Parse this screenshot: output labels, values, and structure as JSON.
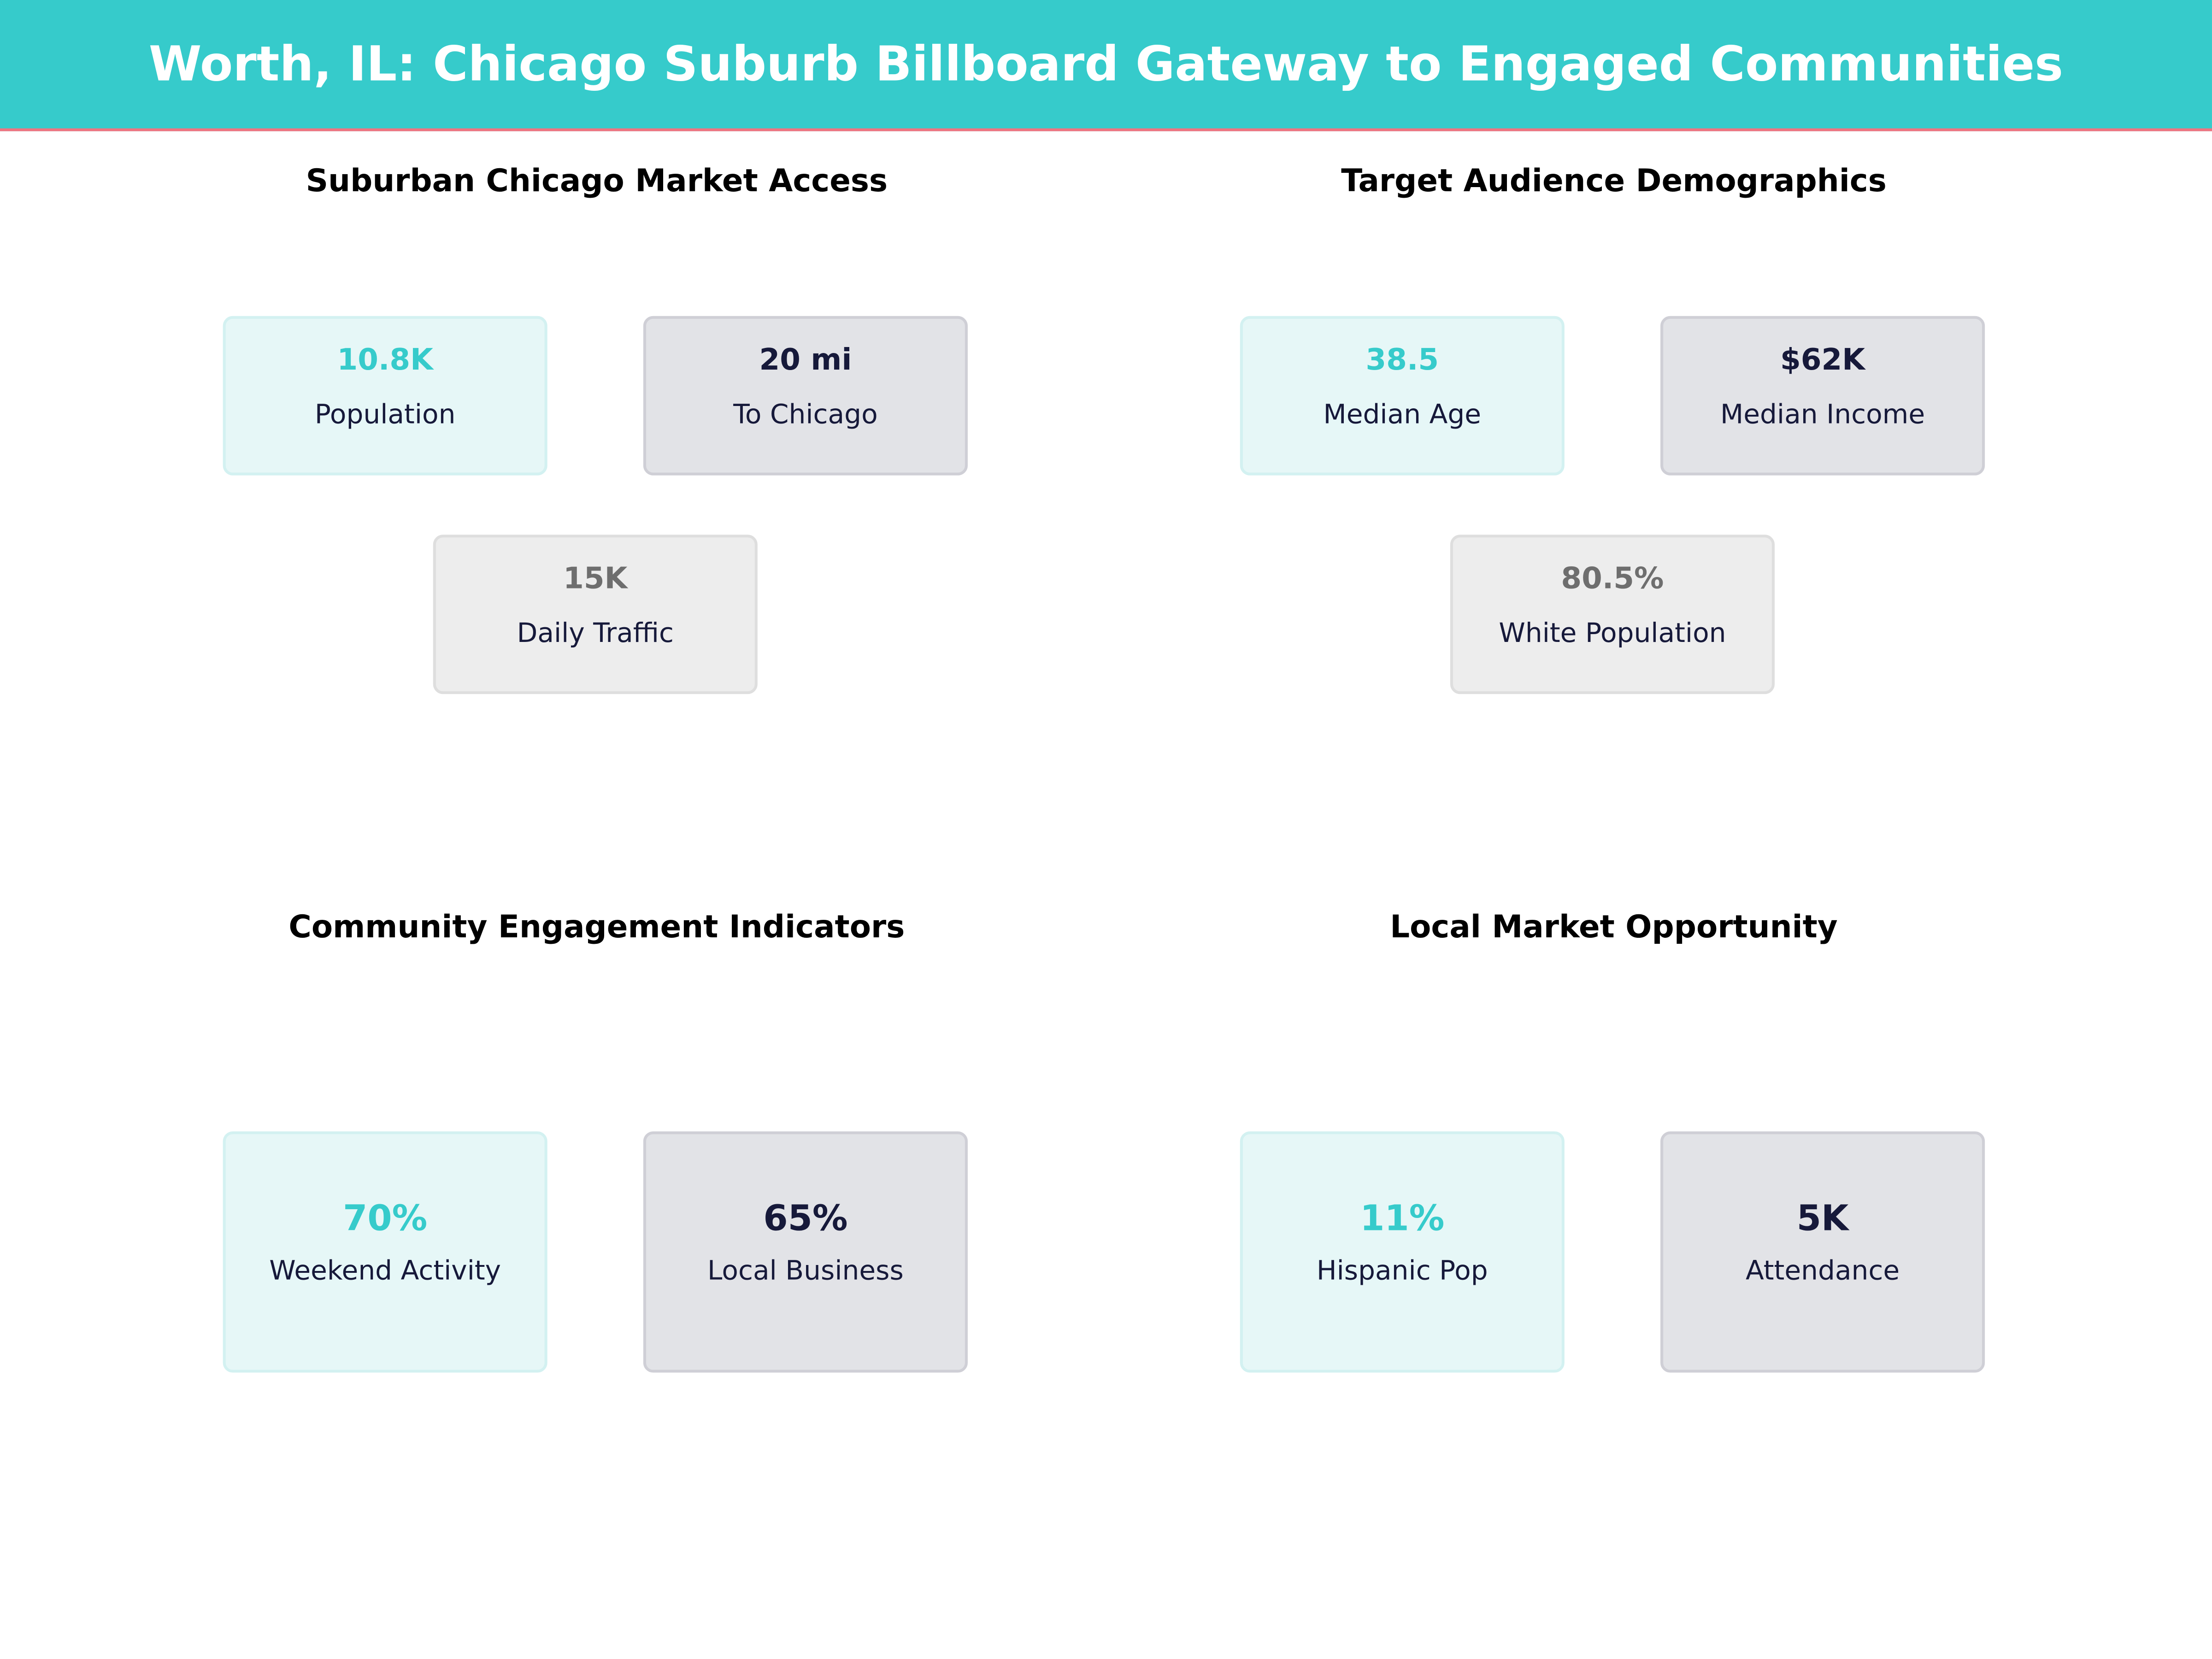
{
  "title": "Worth, IL: Chicago Suburb Billboard Gateway to Engaged Communities",
  "colors": {
    "header": "#36CBCB",
    "accent_line": "#F07480",
    "teal": "#36CBCB",
    "dark": "#16193A",
    "gray": "#6E6E6E"
  },
  "panels": [
    {
      "title": "Suburban Chicago Market Access",
      "cards": [
        {
          "value": "10.8K",
          "label": "Population"
        },
        {
          "value": "20 mi",
          "label": "To Chicago"
        },
        {
          "value": "15K",
          "label": "Daily Traffic"
        }
      ]
    },
    {
      "title": "Target Audience Demographics",
      "cards": [
        {
          "value": "38.5",
          "label": "Median Age"
        },
        {
          "value": "$62K",
          "label": "Median Income"
        },
        {
          "value": "80.5%",
          "label": "White Population"
        }
      ]
    },
    {
      "title": "Community Engagement Indicators",
      "cards": [
        {
          "value": "70%",
          "label": "Weekend Activity"
        },
        {
          "value": "65%",
          "label": "Local Business"
        }
      ]
    },
    {
      "title": "Local Market Opportunity",
      "cards": [
        {
          "value": "11%",
          "label": "Hispanic Pop"
        },
        {
          "value": "5K",
          "label": "Attendance"
        }
      ]
    }
  ]
}
